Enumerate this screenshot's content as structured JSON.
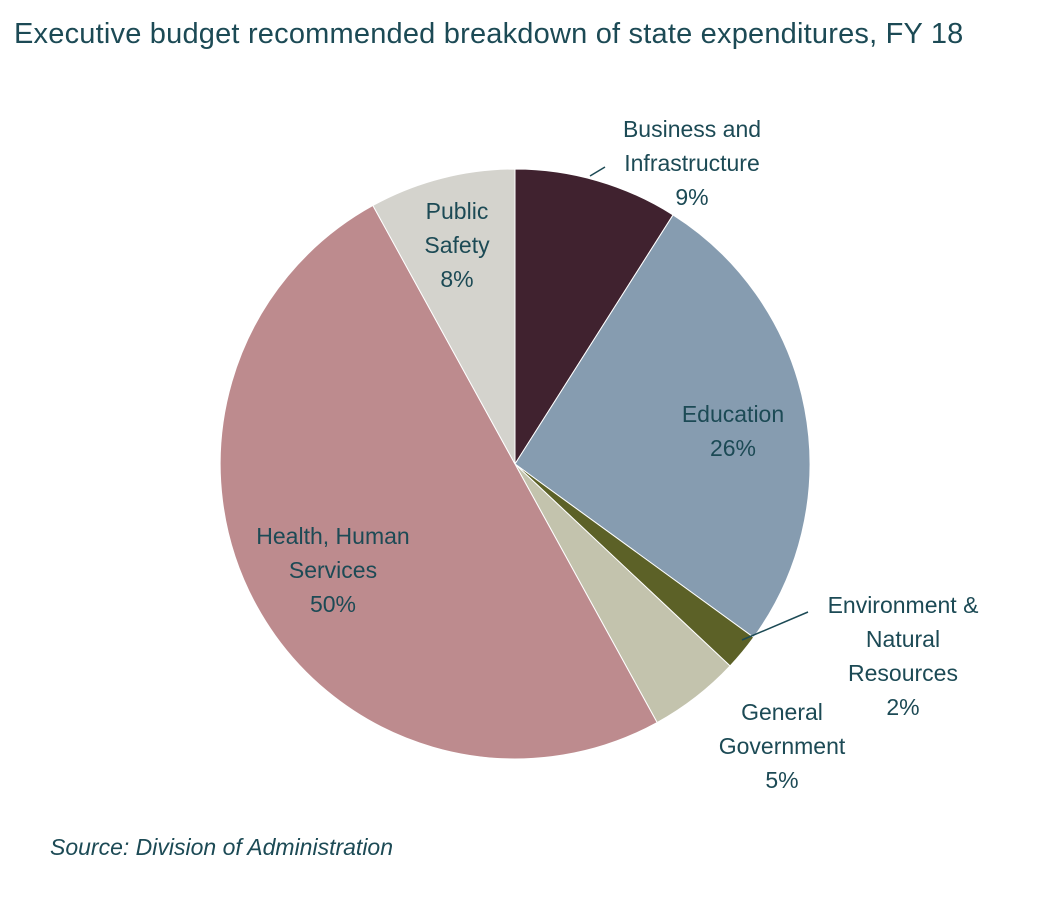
{
  "chart_data": {
    "type": "pie",
    "title": "Executive budget recommended breakdown of state expenditures, FY 18",
    "source": "Source: Division of Administration",
    "slices": [
      {
        "label_lines": [
          "Business and",
          "Infrastructure"
        ],
        "value_label": "9%",
        "value": 9,
        "color": "#40222f"
      },
      {
        "label_lines": [
          "Education"
        ],
        "value_label": "26%",
        "value": 26,
        "color": "#869cb0"
      },
      {
        "label_lines": [
          "Environment &",
          "Natural",
          "Resources"
        ],
        "value_label": "2%",
        "value": 2,
        "color": "#5c6127"
      },
      {
        "label_lines": [
          "General",
          "Government"
        ],
        "value_label": "5%",
        "value": 5,
        "color": "#c3c3ad"
      },
      {
        "label_lines": [
          "Health, Human",
          "Services"
        ],
        "value_label": "50%",
        "value": 50,
        "color": "#bd8b8e"
      },
      {
        "label_lines": [
          "Public",
          "Safety"
        ],
        "value_label": "8%",
        "value": 8,
        "color": "#d4d3cd"
      }
    ]
  }
}
